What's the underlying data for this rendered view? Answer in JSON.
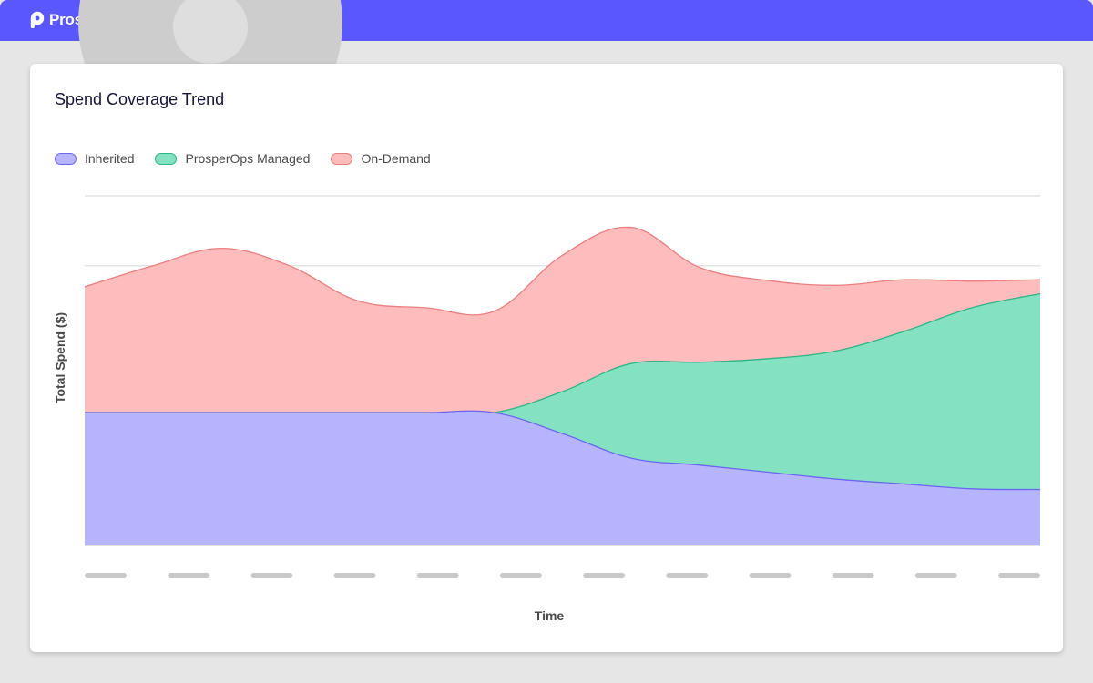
{
  "app": {
    "brand": "ProsperOps"
  },
  "colors": {
    "topbar": "#5b57ff",
    "inherited_fill": "#b6b4fc",
    "inherited_stroke": "#6a66f2",
    "managed_fill": "#84e2c3",
    "managed_stroke": "#2fb486",
    "ondemand_fill": "#ffbcbc",
    "ondemand_stroke": "#ec7f7f"
  },
  "card": {
    "title": "Spend Coverage Trend"
  },
  "chart_data": {
    "type": "area",
    "title": "Spend Coverage Trend",
    "xlabel": "Time",
    "ylabel": "Total Spend ($)",
    "x": [
      0,
      1,
      2,
      3,
      4,
      5,
      6,
      7,
      8,
      9,
      10,
      11,
      12,
      13,
      14
    ],
    "x_tick_labels_hidden": true,
    "x_tick_count": 12,
    "y_gridlines": 5,
    "ylim": [
      0,
      5
    ],
    "stacked": true,
    "legend_position": "top-left",
    "series": [
      {
        "name": "Inherited",
        "values": [
          1.9,
          1.9,
          1.9,
          1.9,
          1.9,
          1.9,
          1.9,
          1.6,
          1.25,
          1.15,
          1.05,
          0.95,
          0.88,
          0.81,
          0.8
        ],
        "fill": "#b6b4fc",
        "stroke": "#6a66f2"
      },
      {
        "name": "ProsperOps Managed",
        "values": [
          0,
          0,
          0,
          0,
          0,
          0,
          0,
          0.6,
          1.35,
          1.47,
          1.62,
          1.83,
          2.18,
          2.59,
          2.8
        ],
        "fill": "#84e2c3",
        "stroke": "#2fb486"
      },
      {
        "name": "On-Demand",
        "values": [
          1.8,
          2.1,
          2.35,
          2.1,
          1.6,
          1.5,
          1.45,
          1.95,
          1.95,
          1.36,
          1.12,
          0.94,
          0.74,
          0.38,
          0.2
        ],
        "fill": "#ffbcbc",
        "stroke": "#ec7f7f"
      }
    ]
  }
}
